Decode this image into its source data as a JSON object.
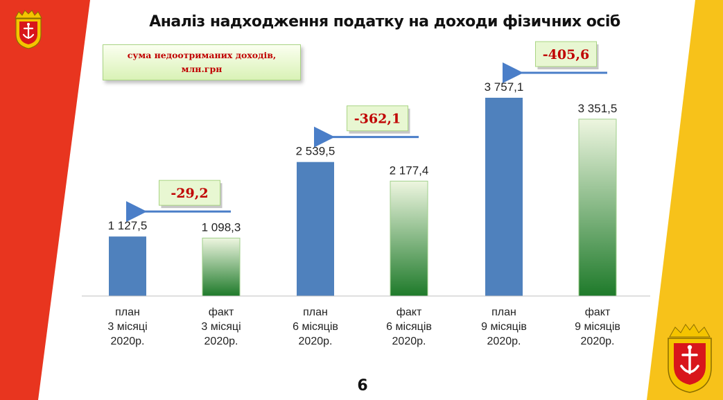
{
  "title": "Аналіз надходження податку на доходи фізичних осіб",
  "legend_note": "сума недоотриманих доходів,\nмлн.грн",
  "page_number": "6",
  "colors": {
    "left_stripe": "#e8351f",
    "right_stripe": "#f7c21a",
    "plan_bar": "#4f81bd",
    "fact_bar_top": "#eef6e0",
    "fact_bar_bottom": "#1e7a2a",
    "difference_text": "#c00000",
    "arrow": "#4a7ec8"
  },
  "chart_data": {
    "type": "bar",
    "title": "Аналіз надходження податку на доходи фізичних осіб",
    "xlabel": "",
    "ylabel": "",
    "ylim": [
      0,
      4000
    ],
    "grid": false,
    "categories": [
      [
        "план",
        "3 місяці",
        "2020р."
      ],
      [
        "факт",
        "3 місяці",
        "2020р."
      ],
      [
        "план",
        "6 місяців",
        "2020р."
      ],
      [
        "факт",
        "6 місяців",
        "2020р."
      ],
      [
        "план",
        "9 місяців",
        "2020р."
      ],
      [
        "факт",
        "9 місяців",
        "2020р."
      ]
    ],
    "values": [
      1127.5,
      1098.3,
      2539.5,
      2177.4,
      3757.1,
      3351.5
    ],
    "value_labels": [
      "1 127,5",
      "1 098,3",
      "2 539,5",
      "2 177,4",
      "3 757,1",
      "3 351,5"
    ],
    "bar_kinds": [
      "plan",
      "fact",
      "plan",
      "fact",
      "plan",
      "fact"
    ],
    "differences": [
      {
        "label": "-29,2",
        "plan_index": 0,
        "fact_index": 1
      },
      {
        "label": "-362,1",
        "plan_index": 2,
        "fact_index": 3
      },
      {
        "label": "-405,6",
        "plan_index": 4,
        "fact_index": 5
      }
    ]
  }
}
